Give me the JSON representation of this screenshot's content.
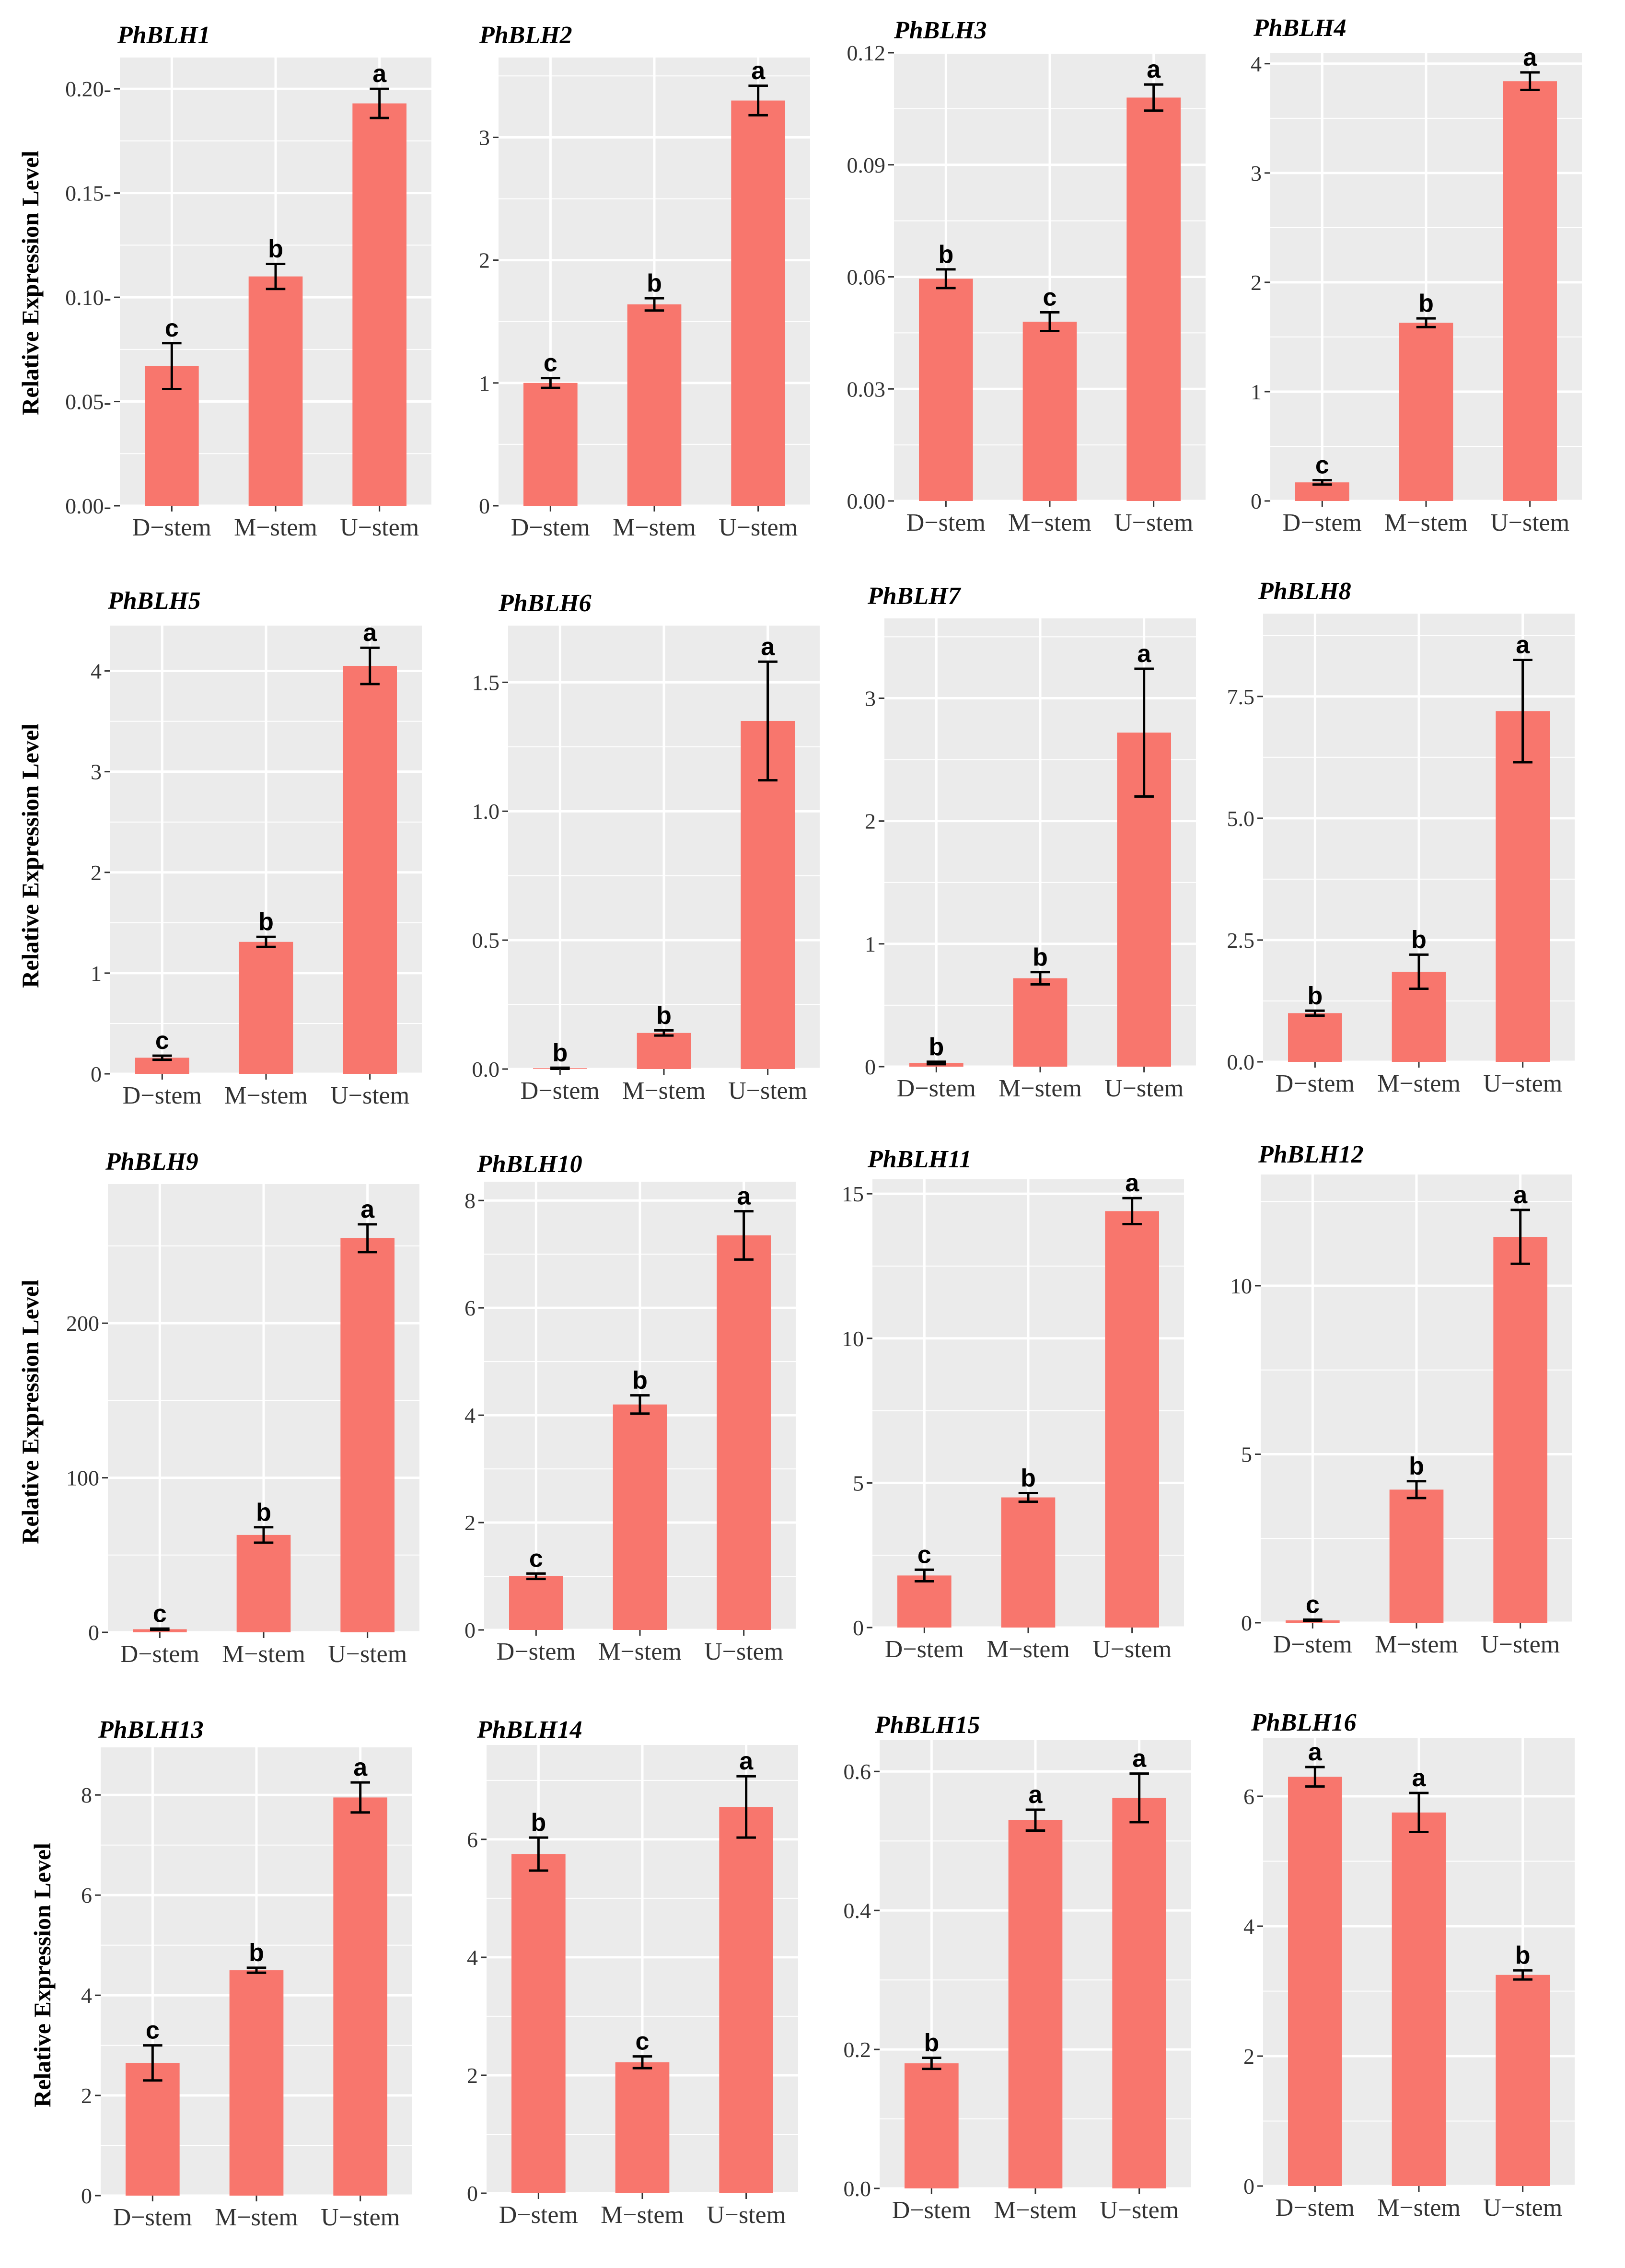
{
  "figure": {
    "ylabel": "Relative Expression Level",
    "categories": [
      "D−stem",
      "M−stem",
      "U−stem"
    ],
    "colors": {
      "bar": "#f8766d",
      "panel_bg": "#ebebeb",
      "grid": "#ffffff",
      "error": "#000000"
    }
  },
  "chart_data": [
    {
      "type": "bar",
      "title": "PhBLH1",
      "categories": [
        "D−stem",
        "M−stem",
        "U−stem"
      ],
      "values": [
        0.067,
        0.11,
        0.193
      ],
      "errors": [
        0.011,
        0.006,
        0.007
      ],
      "letters": [
        "c",
        "b",
        "a"
      ],
      "ylim": [
        0,
        0.215
      ],
      "yticks": [
        0,
        0.05,
        0.1,
        0.15,
        0.2
      ],
      "ytick_labels": [
        "0.00-",
        "0.05-",
        "0.10-",
        "0.15-",
        "0.20-"
      ],
      "ylabel": "Relative Expression Level"
    },
    {
      "type": "bar",
      "title": "PhBLH2",
      "categories": [
        "D−stem",
        "M−stem",
        "U−stem"
      ],
      "values": [
        1.0,
        1.64,
        3.3
      ],
      "errors": [
        0.04,
        0.05,
        0.12
      ],
      "letters": [
        "c",
        "b",
        "a"
      ],
      "ylim": [
        0,
        3.65
      ],
      "yticks": [
        0,
        1,
        2,
        3
      ],
      "ytick_labels": [
        "0",
        "1",
        "2",
        "3"
      ]
    },
    {
      "type": "bar",
      "title": "PhBLH3",
      "categories": [
        "D−stem",
        "M−stem",
        "U−stem"
      ],
      "values": [
        0.0595,
        0.048,
        0.108
      ],
      "errors": [
        0.0025,
        0.0025,
        0.0035
      ],
      "letters": [
        "b",
        "c",
        "a"
      ],
      "ylim": [
        0,
        0.12
      ],
      "yticks": [
        0,
        0.03,
        0.06,
        0.09,
        0.12
      ],
      "ytick_labels": [
        "0.00",
        "0.03",
        "0.06",
        "0.09",
        "0.12"
      ]
    },
    {
      "type": "bar",
      "title": "PhBLH4",
      "categories": [
        "D−stem",
        "M−stem",
        "U−stem"
      ],
      "values": [
        0.17,
        1.63,
        3.84
      ],
      "errors": [
        0.02,
        0.04,
        0.08
      ],
      "letters": [
        "c",
        "b",
        "a"
      ],
      "ylim": [
        0,
        4.1
      ],
      "yticks": [
        0,
        1,
        2,
        3,
        4
      ],
      "ytick_labels": [
        "0",
        "1",
        "2",
        "3",
        "4"
      ]
    },
    {
      "type": "bar",
      "title": "PhBLH5",
      "categories": [
        "D−stem",
        "M−stem",
        "U−stem"
      ],
      "values": [
        0.16,
        1.31,
        4.05
      ],
      "errors": [
        0.02,
        0.05,
        0.18
      ],
      "letters": [
        "c",
        "b",
        "a"
      ],
      "ylim": [
        0,
        4.45
      ],
      "yticks": [
        0,
        1,
        2,
        3,
        4
      ],
      "ytick_labels": [
        "0",
        "1",
        "2",
        "3",
        "4"
      ],
      "ylabel": "Relative Expression Level"
    },
    {
      "type": "bar",
      "title": "PhBLH6",
      "categories": [
        "D−stem",
        "M−stem",
        "U−stem"
      ],
      "values": [
        0.003,
        0.14,
        1.35
      ],
      "errors": [
        0.002,
        0.01,
        0.23
      ],
      "letters": [
        "b",
        "b",
        "a"
      ],
      "ylim": [
        0,
        1.72
      ],
      "yticks": [
        0,
        0.5,
        1.0,
        1.5
      ],
      "ytick_labels": [
        "0.0",
        "0.5",
        "1.0",
        "1.5"
      ]
    },
    {
      "type": "bar",
      "title": "PhBLH7",
      "categories": [
        "D−stem",
        "M−stem",
        "U−stem"
      ],
      "values": [
        0.03,
        0.72,
        2.72
      ],
      "errors": [
        0.01,
        0.05,
        0.52
      ],
      "letters": [
        "b",
        "b",
        "a"
      ],
      "ylim": [
        0,
        3.65
      ],
      "yticks": [
        0,
        1,
        2,
        3
      ],
      "ytick_labels": [
        "0",
        "1",
        "2",
        "3"
      ]
    },
    {
      "type": "bar",
      "title": "PhBLH8",
      "categories": [
        "D−stem",
        "M−stem",
        "U−stem"
      ],
      "values": [
        1.0,
        1.85,
        7.2
      ],
      "errors": [
        0.05,
        0.35,
        1.05
      ],
      "letters": [
        "b",
        "b",
        "a"
      ],
      "ylim": [
        0,
        9.2
      ],
      "yticks": [
        0,
        2.5,
        5.0,
        7.5
      ],
      "ytick_labels": [
        "0.0",
        "2.5",
        "5.0",
        "7.5"
      ]
    },
    {
      "type": "bar",
      "title": "PhBLH9",
      "categories": [
        "D−stem",
        "M−stem",
        "U−stem"
      ],
      "values": [
        2.0,
        63,
        255
      ],
      "errors": [
        0.4,
        5,
        9
      ],
      "letters": [
        "c",
        "b",
        "a"
      ],
      "ylim": [
        0,
        290
      ],
      "yticks": [
        0,
        100,
        200
      ],
      "ytick_labels": [
        "0",
        "100",
        "200"
      ],
      "ylabel": "Relative Expression Level"
    },
    {
      "type": "bar",
      "title": "PhBLH10",
      "categories": [
        "D−stem",
        "M−stem",
        "U−stem"
      ],
      "values": [
        1.0,
        4.2,
        7.35
      ],
      "errors": [
        0.05,
        0.17,
        0.45
      ],
      "letters": [
        "c",
        "b",
        "a"
      ],
      "ylim": [
        0,
        8.35
      ],
      "yticks": [
        0,
        2,
        4,
        6,
        8
      ],
      "ytick_labels": [
        "0",
        "2",
        "4",
        "6",
        "8"
      ]
    },
    {
      "type": "bar",
      "title": "PhBLH11",
      "categories": [
        "D−stem",
        "M−stem",
        "U−stem"
      ],
      "values": [
        1.8,
        4.5,
        14.4
      ],
      "errors": [
        0.2,
        0.15,
        0.45
      ],
      "letters": [
        "c",
        "b",
        "a"
      ],
      "ylim": [
        0,
        15.5
      ],
      "yticks": [
        0,
        5,
        10,
        15
      ],
      "ytick_labels": [
        "0",
        "5",
        "10",
        "15"
      ]
    },
    {
      "type": "bar",
      "title": "PhBLH12",
      "categories": [
        "D−stem",
        "M−stem",
        "U−stem"
      ],
      "values": [
        0.07,
        3.95,
        11.45
      ],
      "errors": [
        0.02,
        0.25,
        0.8
      ],
      "letters": [
        "c",
        "b",
        "a"
      ],
      "ylim": [
        0,
        13.3
      ],
      "yticks": [
        0,
        5,
        10
      ],
      "ytick_labels": [
        "0",
        "5",
        "10"
      ]
    },
    {
      "type": "bar",
      "title": "PhBLH13",
      "categories": [
        "D−stem",
        "M−stem",
        "U−stem"
      ],
      "values": [
        2.65,
        4.5,
        7.95
      ],
      "errors": [
        0.35,
        0.05,
        0.3
      ],
      "letters": [
        "c",
        "b",
        "a"
      ],
      "ylim": [
        0,
        8.95
      ],
      "yticks": [
        0,
        2,
        4,
        6,
        8
      ],
      "ytick_labels": [
        "0",
        "2",
        "4",
        "6",
        "8"
      ],
      "ylabel": "Relative Expression Level"
    },
    {
      "type": "bar",
      "title": "PhBLH14",
      "categories": [
        "D−stem",
        "M−stem",
        "U−stem"
      ],
      "values": [
        5.75,
        2.22,
        6.55
      ],
      "errors": [
        0.28,
        0.1,
        0.52
      ],
      "letters": [
        "b",
        "c",
        "a"
      ],
      "ylim": [
        0,
        7.6
      ],
      "yticks": [
        0,
        2,
        4,
        6
      ],
      "ytick_labels": [
        "0",
        "2",
        "4",
        "6"
      ]
    },
    {
      "type": "bar",
      "title": "PhBLH15",
      "categories": [
        "D−stem",
        "M−stem",
        "U−stem"
      ],
      "values": [
        0.18,
        0.53,
        0.562
      ],
      "errors": [
        0.008,
        0.015,
        0.035
      ],
      "letters": [
        "b",
        "a",
        "a"
      ],
      "ylim": [
        0,
        0.645
      ],
      "yticks": [
        0,
        0.2,
        0.4,
        0.6
      ],
      "ytick_labels": [
        "0.0",
        "0.2",
        "0.4",
        "0.6"
      ]
    },
    {
      "type": "bar",
      "title": "PhBLH16",
      "categories": [
        "D−stem",
        "M−stem",
        "U−stem"
      ],
      "values": [
        6.3,
        5.75,
        3.25
      ],
      "errors": [
        0.15,
        0.3,
        0.07
      ],
      "letters": [
        "a",
        "a",
        "b"
      ],
      "ylim": [
        0,
        6.9
      ],
      "yticks": [
        0,
        2,
        4,
        6
      ],
      "ytick_labels": [
        "0",
        "2",
        "4",
        "6"
      ]
    }
  ]
}
